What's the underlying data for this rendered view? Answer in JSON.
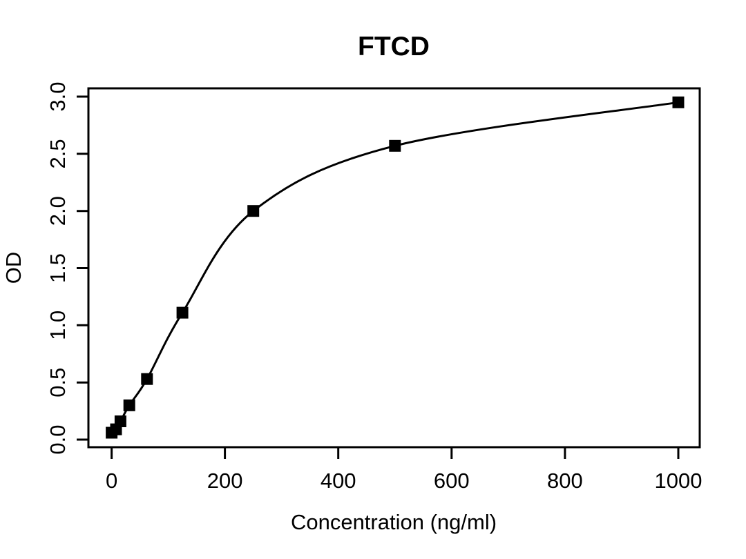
{
  "figure": {
    "background": "#ffffff",
    "foreground": "#000000"
  },
  "chart_data": {
    "type": "line",
    "title": "FTCD",
    "xlabel": "Concentration (ng/ml)",
    "ylabel": "OD",
    "grid": false,
    "legend": "none",
    "marker": "filled-square",
    "marker_size_px": 17,
    "line_color": "#000000",
    "marker_color": "#000000",
    "xlim": [
      -40.9,
      1037.8
    ],
    "ylim": [
      -0.0665,
      3.0726
    ],
    "x_ticks": [
      {
        "value": 0,
        "label": "0"
      },
      {
        "value": 200,
        "label": "200"
      },
      {
        "value": 400,
        "label": "400"
      },
      {
        "value": 600,
        "label": "600"
      },
      {
        "value": 800,
        "label": "800"
      },
      {
        "value": 1000,
        "label": "1000"
      }
    ],
    "y_ticks": [
      {
        "value": 0.0,
        "label": "0.0"
      },
      {
        "value": 0.5,
        "label": "0.5"
      },
      {
        "value": 1.0,
        "label": "1.0"
      },
      {
        "value": 1.5,
        "label": "1.5"
      },
      {
        "value": 2.0,
        "label": "2.0"
      },
      {
        "value": 2.5,
        "label": "2.5"
      },
      {
        "value": 3.0,
        "label": "3.0"
      }
    ],
    "points": [
      {
        "concentration": 0,
        "od": 0.06
      },
      {
        "concentration": 7.8125,
        "od": 0.09
      },
      {
        "concentration": 15.625,
        "od": 0.16
      },
      {
        "concentration": 31.25,
        "od": 0.3
      },
      {
        "concentration": 62.5,
        "od": 0.53
      },
      {
        "concentration": 125,
        "od": 1.11
      },
      {
        "concentration": 250,
        "od": 2.0
      },
      {
        "concentration": 500,
        "od": 2.57
      },
      {
        "concentration": 1000,
        "od": 2.95
      }
    ]
  }
}
